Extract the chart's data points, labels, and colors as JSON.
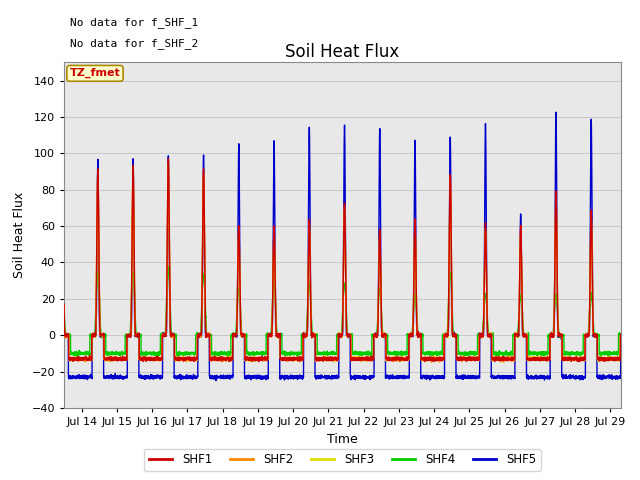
{
  "title": "Soil Heat Flux",
  "xlabel": "Time",
  "ylabel": "Soil Heat Flux",
  "xlim_days": [
    13.5,
    29.3
  ],
  "ylim": [
    -40,
    150
  ],
  "yticks": [
    -40,
    -20,
    0,
    20,
    40,
    60,
    80,
    100,
    120,
    140
  ],
  "xtick_labels": [
    "Jul 14",
    "Jul 15",
    "Jul 16",
    "Jul 17",
    "Jul 18",
    "Jul 19",
    "Jul 20",
    "Jul 21",
    "Jul 22",
    "Jul 23",
    "Jul 24",
    "Jul 25",
    "Jul 26",
    "Jul 27",
    "Jul 28",
    "Jul 29"
  ],
  "xtick_days": [
    14,
    15,
    16,
    17,
    18,
    19,
    20,
    21,
    22,
    23,
    24,
    25,
    26,
    27,
    28,
    29
  ],
  "colors": {
    "SHF1": "#cc0000",
    "SHF2": "#ff8800",
    "SHF3": "#dddd00",
    "SHF4": "#00cc00",
    "SHF5": "#0000cc"
  },
  "annotation_text1": "No data for f_SHF_1",
  "annotation_text2": "No data for f_SHF_2",
  "box_label": "TZ_fmet",
  "box_facecolor": "#ffffcc",
  "box_edgecolor": "#aa8800",
  "title_fontsize": 12,
  "label_fontsize": 9,
  "tick_fontsize": 8,
  "grid_color": "#bbbbbb",
  "plot_bg": "#e8e8e8",
  "shf5_night": -23.0,
  "shf14_night": -13.0,
  "shf4_night": -10.0
}
